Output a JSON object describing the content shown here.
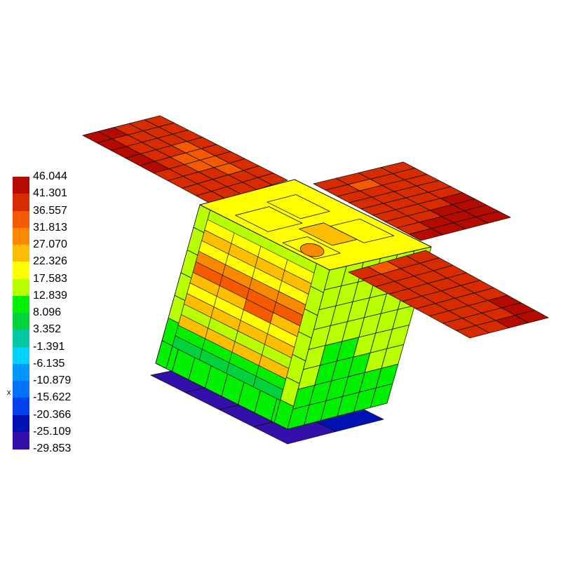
{
  "legend": {
    "labels": [
      "46.044",
      "41.301",
      "36.557",
      "31.813",
      "27.070",
      "22.326",
      "17.583",
      "12.839",
      "8.096",
      "3.352",
      "-1.391",
      "-6.135",
      "-10.879",
      "-15.622",
      "-20.366",
      "-25.109",
      "-29.853"
    ],
    "band_colors": [
      "#b40a00",
      "#d82c00",
      "#f55a00",
      "#f98a00",
      "#ffbd00",
      "#ffff00",
      "#b8ff00",
      "#00f000",
      "#00d23c",
      "#00c8a5",
      "#00d2ff",
      "#0096ff",
      "#0070ff",
      "#0041ec",
      "#0011b4",
      "#3310ab"
    ]
  },
  "axis_label": "x",
  "model": {
    "left_panel_levels": [
      [
        0,
        0,
        1,
        1,
        1
      ],
      [
        0,
        1,
        1,
        1,
        1
      ],
      [
        0,
        1,
        1,
        1,
        1
      ],
      [
        0,
        1,
        1,
        2,
        1
      ],
      [
        0,
        1,
        2,
        2,
        1
      ],
      [
        1,
        1,
        2,
        2,
        1
      ],
      [
        1,
        1,
        1,
        2,
        1
      ],
      [
        1,
        1,
        1,
        1,
        1
      ],
      [
        1,
        1,
        1,
        1,
        1
      ]
    ],
    "right_upper_panel_levels": [
      [
        1,
        1,
        1,
        1
      ],
      [
        1,
        1,
        2,
        1
      ],
      [
        1,
        1,
        1,
        1
      ],
      [
        1,
        1,
        1,
        1
      ],
      [
        1,
        1,
        1,
        1
      ],
      [
        0,
        1,
        1,
        1
      ],
      [
        0,
        0,
        1,
        1
      ],
      [
        0,
        0,
        0,
        1
      ],
      [
        0,
        0,
        0,
        0
      ]
    ],
    "right_lower_panel_levels": [
      [
        1,
        2,
        1,
        1
      ],
      [
        1,
        1,
        1,
        1
      ],
      [
        1,
        1,
        1,
        1
      ],
      [
        1,
        1,
        1,
        1
      ],
      [
        1,
        1,
        1,
        1
      ],
      [
        1,
        1,
        1,
        1
      ],
      [
        1,
        1,
        1,
        0
      ],
      [
        1,
        1,
        1,
        0
      ],
      [
        1,
        1,
        0,
        0
      ]
    ],
    "right_face_levels": [
      [
        6,
        6,
        6,
        6,
        6,
        6
      ],
      [
        6,
        6,
        6,
        6,
        6,
        6
      ],
      [
        6,
        6,
        6,
        6,
        6,
        6
      ],
      [
        6,
        6,
        6,
        6,
        6,
        6
      ],
      [
        6,
        7,
        7,
        6,
        6,
        6
      ],
      [
        6,
        7,
        7,
        7,
        6,
        6
      ],
      [
        7,
        7,
        7,
        7,
        7,
        7
      ],
      [
        7,
        7,
        7,
        7,
        7,
        7
      ]
    ],
    "shelf_levels": [
      5,
      4,
      5,
      3,
      2,
      4,
      5,
      4,
      6,
      4,
      7,
      8
    ],
    "frame_level": 6,
    "frame_bottom_level": 7,
    "top_level": 5,
    "top_accent_level": 3,
    "plate_level": 15,
    "plate_right_level": 14
  }
}
